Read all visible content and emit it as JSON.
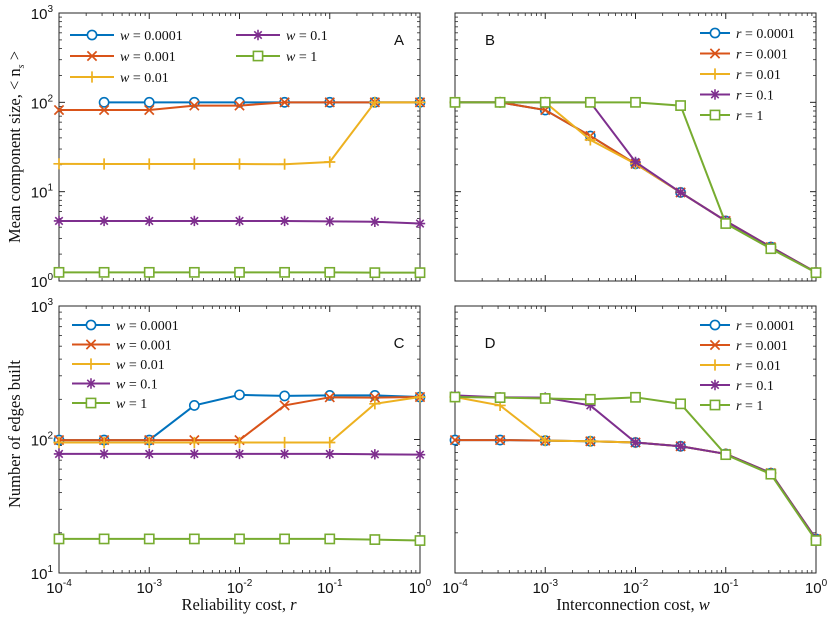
{
  "figure": {
    "ylabel_top": "Mean component size, < n",
    "ylabel_top_sub": "s",
    "ylabel_top_end": " >",
    "ylabel_bottom": "Number of edges built",
    "xlabel_left": "Reliability cost, ",
    "xlabel_left_var": "r",
    "xlabel_right": "Interconnection cost, ",
    "xlabel_right_var": "w"
  },
  "colors": {
    "series_1": "#0072BD",
    "series_2": "#D95319",
    "series_3": "#EDB120",
    "series_4": "#7E2F8E",
    "series_5": "#77AC30"
  },
  "chart_data": [
    {
      "panel": "A",
      "type": "line",
      "xscale": "log",
      "yscale": "log",
      "xlim": [
        0.0001,
        1
      ],
      "ylim": [
        1,
        1000
      ],
      "x_ticks": [
        "10^-4",
        "10^-3",
        "10^-2",
        "10^-1",
        "10^0"
      ],
      "y_ticks": [
        "10^0",
        "10^1",
        "10^2",
        "10^3"
      ],
      "xlabel": "Reliability cost, r",
      "ylabel": "Mean component size, < n_s >",
      "legend_position": "top-left, two columns",
      "x": [
        0.0001,
        0.000316,
        0.001,
        0.00316,
        0.01,
        0.0316,
        0.1,
        0.316,
        1
      ],
      "series": [
        {
          "name": "w = 0.0001",
          "marker": "circle",
          "x": [
            0.000316,
            0.001,
            0.00316,
            0.01,
            0.0316,
            0.1,
            0.316,
            1
          ],
          "values": [
            100,
            100,
            100,
            100,
            100,
            100,
            100,
            100
          ]
        },
        {
          "name": "w = 0.001",
          "marker": "x",
          "values": [
            82,
            82,
            82,
            92,
            92,
            100,
            100,
            100,
            100
          ]
        },
        {
          "name": "w = 0.01",
          "marker": "plus",
          "values": [
            20.5,
            20.4,
            20.4,
            20.4,
            20.4,
            20.3,
            21.5,
            100,
            100
          ]
        },
        {
          "name": "w = 0.1",
          "marker": "asterisk",
          "values": [
            4.7,
            4.7,
            4.7,
            4.7,
            4.7,
            4.7,
            4.65,
            4.6,
            4.4
          ]
        },
        {
          "name": "w = 1",
          "marker": "square",
          "values": [
            1.25,
            1.25,
            1.25,
            1.25,
            1.25,
            1.25,
            1.25,
            1.24,
            1.24
          ]
        }
      ]
    },
    {
      "panel": "B",
      "type": "line",
      "xscale": "log",
      "yscale": "log",
      "xlim": [
        0.0001,
        1
      ],
      "ylim": [
        1,
        1000
      ],
      "legend_position": "top-right",
      "x": [
        0.0001,
        0.000316,
        0.001,
        0.00316,
        0.01,
        0.0316,
        0.1,
        0.316,
        1
      ],
      "series": [
        {
          "name": "r = 0.0001",
          "marker": "circle",
          "values": [
            100,
            100,
            82,
            42,
            20.5,
            9.8,
            4.7,
            2.4,
            1.25
          ]
        },
        {
          "name": "r = 0.001",
          "marker": "x",
          "values": [
            100,
            100,
            82,
            42,
            20.5,
            9.8,
            4.7,
            2.4,
            1.25
          ]
        },
        {
          "name": "r = 0.01",
          "marker": "plus",
          "values": [
            100,
            100,
            100,
            38,
            20.5,
            9.8,
            4.7,
            2.4,
            1.25
          ]
        },
        {
          "name": "r = 0.1",
          "marker": "asterisk",
          "values": [
            100,
            100,
            100,
            100,
            21.5,
            9.8,
            4.7,
            2.4,
            1.25
          ]
        },
        {
          "name": "r = 1",
          "marker": "square",
          "values": [
            100,
            100,
            100,
            100,
            100,
            92,
            4.4,
            2.3,
            1.24
          ]
        }
      ]
    },
    {
      "panel": "C",
      "type": "line",
      "xscale": "log",
      "yscale": "log",
      "xlim": [
        0.0001,
        1
      ],
      "ylim": [
        10,
        1000
      ],
      "x_ticks": [
        "10^-4",
        "10^-3",
        "10^-2",
        "10^-1",
        "10^0"
      ],
      "y_ticks": [
        "10^1",
        "10^2",
        "10^3"
      ],
      "xlabel": "Reliability cost, r",
      "ylabel": "Number of edges built",
      "legend_position": "top-left",
      "x": [
        0.0001,
        0.000316,
        0.001,
        0.00316,
        0.01,
        0.0316,
        0.1,
        0.316,
        1
      ],
      "series": [
        {
          "name": "w = 0.0001",
          "marker": "circle",
          "values": [
            99,
            99,
            99,
            180,
            216,
            212,
            214,
            214,
            208
          ]
        },
        {
          "name": "w = 0.001",
          "marker": "x",
          "values": [
            99,
            99,
            99,
            99,
            99,
            180,
            207,
            206,
            208
          ]
        },
        {
          "name": "w = 0.01",
          "marker": "plus",
          "values": [
            95,
            95,
            95,
            95,
            95,
            95,
            95,
            185,
            208
          ]
        },
        {
          "name": "w = 0.1",
          "marker": "asterisk",
          "values": [
            78,
            78,
            78,
            78,
            78,
            78,
            78,
            77.5,
            77
          ]
        },
        {
          "name": "w = 1",
          "marker": "square",
          "values": [
            18,
            18,
            18,
            18,
            18,
            18,
            18,
            17.8,
            17.5
          ]
        }
      ]
    },
    {
      "panel": "D",
      "type": "line",
      "xscale": "log",
      "yscale": "log",
      "xlim": [
        0.0001,
        1
      ],
      "ylim": [
        10,
        1000
      ],
      "x_ticks": [
        "10^-4",
        "10^-3",
        "10^-2",
        "10^-1",
        "10^0"
      ],
      "xlabel": "Interconnection cost, w",
      "legend_position": "top-right",
      "x": [
        0.0001,
        0.000316,
        0.001,
        0.00316,
        0.01,
        0.0316,
        0.1,
        0.316,
        1
      ],
      "series": [
        {
          "name": "r = 0.0001",
          "marker": "circle",
          "values": [
            99,
            99,
            98,
            97,
            95,
            89,
            78,
            56,
            18
          ]
        },
        {
          "name": "r = 0.001",
          "marker": "x",
          "values": [
            99,
            99,
            98,
            97,
            95,
            89,
            78,
            56,
            18
          ]
        },
        {
          "name": "r = 0.01",
          "marker": "plus",
          "values": [
            208,
            180,
            98,
            97,
            95,
            89,
            78,
            56,
            18
          ]
        },
        {
          "name": "r = 0.1",
          "marker": "asterisk",
          "values": [
            214,
            207,
            206,
            180,
            95,
            89,
            78,
            56,
            18
          ]
        },
        {
          "name": "r = 1",
          "marker": "square",
          "values": [
            208,
            206,
            203,
            200,
            207,
            185,
            77,
            55,
            17.5
          ]
        }
      ]
    }
  ]
}
